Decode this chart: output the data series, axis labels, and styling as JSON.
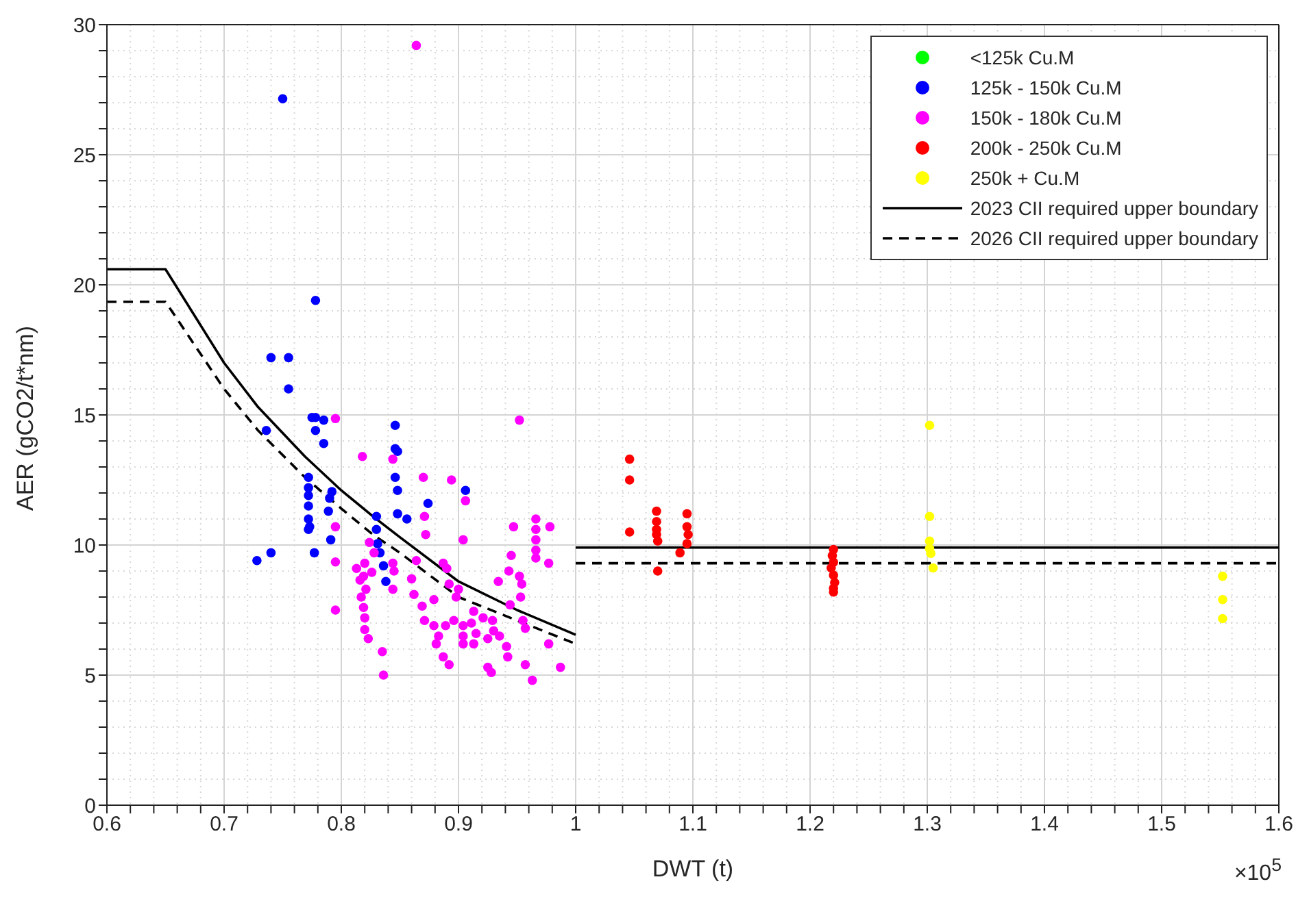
{
  "chart_data": {
    "type": "scatter",
    "xlabel": "DWT (t)",
    "ylabel": "AER (gCO2/t*nm)",
    "annotations": [
      "×10$^{5}$"
    ],
    "xlim": [
      0.6,
      1.6
    ],
    "ylim": [
      0,
      30
    ],
    "xticks": [
      0.6,
      0.7,
      0.8,
      0.9,
      1,
      1.1,
      1.2,
      1.3,
      1.4,
      1.5,
      1.6,
      {
        "value": 0.62,
        "label": null
      },
      {
        "value": 0.64,
        "label": null
      },
      {
        "value": 0.66,
        "label": null
      },
      {
        "value": 0.68,
        "label": null
      },
      {
        "value": 0.72,
        "label": null
      },
      {
        "value": 0.74,
        "label": null
      },
      {
        "value": 0.76,
        "label": null
      },
      {
        "value": 0.78,
        "label": null
      },
      {
        "value": 0.82,
        "label": null
      },
      {
        "value": 0.84,
        "label": null
      },
      {
        "value": 0.86,
        "label": null
      },
      {
        "value": 0.88,
        "label": null
      },
      {
        "value": 0.92,
        "label": null
      },
      {
        "value": 0.94,
        "label": null
      },
      {
        "value": 0.96,
        "label": null
      },
      {
        "value": 0.98,
        "label": null
      },
      {
        "value": 1.02,
        "label": null
      },
      {
        "value": 1.04,
        "label": null
      },
      {
        "value": 1.06,
        "label": null
      },
      {
        "value": 1.08,
        "label": null
      },
      {
        "value": 1.12,
        "label": null
      },
      {
        "value": 1.14,
        "label": null
      },
      {
        "value": 1.16,
        "label": null
      },
      {
        "value": 1.18,
        "label": null
      },
      {
        "value": 1.22,
        "label": null
      },
      {
        "value": 1.24,
        "label": null
      },
      {
        "value": 1.26,
        "label": null
      },
      {
        "value": 1.28,
        "label": null
      },
      {
        "value": 1.32,
        "label": null
      },
      {
        "value": 1.34,
        "label": null
      },
      {
        "value": 1.36,
        "label": null
      },
      {
        "value": 1.38,
        "label": null
      },
      {
        "value": 1.42,
        "label": null
      },
      {
        "value": 1.44,
        "label": null
      },
      {
        "value": 1.46,
        "label": null
      },
      {
        "value": 1.48,
        "label": null
      },
      {
        "value": 1.52,
        "label": null
      },
      {
        "value": 1.54,
        "label": null
      },
      {
        "value": 1.56,
        "label": null
      },
      {
        "value": 1.58,
        "label": null
      }
    ],
    "yticks": [
      0,
      5,
      10,
      15,
      20,
      25,
      30,
      {
        "value": 1,
        "label": null
      },
      {
        "value": 2,
        "label": null
      },
      {
        "value": 3,
        "label": null
      },
      {
        "value": 4,
        "label": null
      },
      {
        "value": 6,
        "label": null
      },
      {
        "value": 7,
        "label": null
      },
      {
        "value": 8,
        "label": null
      },
      {
        "value": 9,
        "label": null
      },
      {
        "value": 11,
        "label": null
      },
      {
        "value": 12,
        "label": null
      },
      {
        "value": 13,
        "label": null
      },
      {
        "value": 14,
        "label": null
      },
      {
        "value": 16,
        "label": null
      },
      {
        "value": 17,
        "label": null
      },
      {
        "value": 18,
        "label": null
      },
      {
        "value": 19,
        "label": null
      },
      {
        "value": 21,
        "label": null
      },
      {
        "value": 22,
        "label": null
      },
      {
        "value": 23,
        "label": null
      },
      {
        "value": 24,
        "label": null
      },
      {
        "value": 26,
        "label": null
      },
      {
        "value": 27,
        "label": null
      },
      {
        "value": 28,
        "label": null
      },
      {
        "value": 29,
        "label": null
      }
    ],
    "grid": true,
    "legend": "top right",
    "marker": "circle",
    "series": [
      {
        "name": "<125k Cu.M",
        "color": "#00ff00"
      },
      {
        "name": "125k - 150k Cu.M",
        "color": "#0000ff",
        "x": [
          0.75,
          0.778,
          0.74,
          0.755,
          0.755,
          0.775,
          0.778,
          0.785,
          0.846,
          0.778,
          0.736,
          0.785,
          0.846,
          0.848,
          0.846,
          0.848,
          0.906,
          0.772,
          0.772,
          0.772,
          0.772,
          0.772,
          0.772,
          0.792,
          0.79,
          0.789,
          0.773,
          0.874,
          0.848,
          0.856,
          0.83,
          0.83,
          0.831,
          0.791,
          0.728,
          0.74,
          0.777,
          0.836,
          0.838,
          0.833
        ],
        "values": [
          27.15,
          19.4,
          17.2,
          17.2,
          16,
          14.9,
          14.9,
          14.8,
          14.6,
          14.4,
          14.4,
          13.9,
          13.7,
          13.6,
          12.6,
          12.1,
          12.1,
          12.6,
          12.2,
          11.9,
          11.5,
          11,
          10.6,
          12.05,
          11.8,
          11.3,
          10.7,
          11.6,
          11.2,
          11,
          11.1,
          10.6,
          10.05,
          10.2,
          9.4,
          9.7,
          9.7,
          9.2,
          8.6,
          9.7
        ]
      },
      {
        "name": "150k - 180k Cu.M",
        "color": "#ff00ff",
        "x": [
          0.864,
          0.795,
          0.952,
          0.818,
          0.844,
          0.87,
          0.894,
          0.906,
          0.871,
          0.872,
          0.904,
          0.795,
          0.947,
          0.966,
          0.966,
          0.966,
          0.966,
          0.966,
          0.978,
          0.977,
          0.945,
          0.943,
          0.934,
          0.952,
          0.954,
          0.953,
          0.944,
          0.955,
          0.957,
          0.977,
          0.987,
          0.963,
          0.957,
          0.942,
          0.941,
          0.935,
          0.925,
          0.925,
          0.928,
          0.929,
          0.93,
          0.921,
          0.913,
          0.911,
          0.915,
          0.913,
          0.904,
          0.904,
          0.892,
          0.887,
          0.881,
          0.883,
          0.879,
          0.871,
          0.889,
          0.896,
          0.898,
          0.9,
          0.892,
          0.89,
          0.887,
          0.879,
          0.869,
          0.862,
          0.86,
          0.864,
          0.844,
          0.845,
          0.844,
          0.835,
          0.836,
          0.823,
          0.82,
          0.82,
          0.819,
          0.817,
          0.821,
          0.816,
          0.813,
          0.82,
          0.826,
          0.828,
          0.824,
          0.819,
          0.795,
          0.795,
          0.904
        ],
        "values": [
          29.2,
          14.86,
          14.8,
          13.4,
          13.3,
          12.6,
          12.5,
          11.7,
          11.1,
          10.4,
          10.2,
          10.7,
          10.7,
          11,
          10.6,
          10.2,
          9.8,
          9.5,
          10.7,
          9.3,
          9.6,
          9,
          8.6,
          8.8,
          8.5,
          8,
          7.7,
          7.1,
          6.8,
          6.2,
          5.3,
          4.8,
          5.4,
          5.7,
          6.1,
          6.5,
          6.4,
          5.3,
          5.1,
          7.1,
          6.7,
          7.2,
          7.45,
          7,
          6.6,
          6.2,
          6.9,
          6.5,
          5.4,
          5.7,
          6.2,
          6.5,
          6.9,
          7.1,
          6.9,
          7.1,
          8,
          8.3,
          8.5,
          9.1,
          9.3,
          7.9,
          7.65,
          8.1,
          8.7,
          9.4,
          9.3,
          9,
          8.3,
          5.9,
          5,
          6.4,
          6.75,
          7.2,
          7.6,
          8,
          8.3,
          8.65,
          9.1,
          9.3,
          8.95,
          9.7,
          10.1,
          8.8,
          9.35,
          7.5,
          6.2
        ]
      },
      {
        "name": "200k - 250k Cu.M",
        "color": "#ff0000",
        "x": [
          1.046,
          1.046,
          1.046,
          1.069,
          1.069,
          1.069,
          1.069,
          1.07,
          1.07,
          1.095,
          1.095,
          1.096,
          1.095,
          1.089,
          1.22,
          1.219,
          1.22,
          1.218,
          1.22,
          1.221,
          1.22,
          1.22
        ],
        "values": [
          13.3,
          12.5,
          10.5,
          11.3,
          10.9,
          10.6,
          10.4,
          10.15,
          9,
          11.2,
          10.7,
          10.4,
          10.05,
          9.7,
          9.83,
          9.59,
          9.34,
          9.12,
          8.84,
          8.56,
          8.34,
          8.19
        ]
      },
      {
        "name": "250k + Cu.M",
        "color": "#ffff00",
        "x": [
          1.302,
          1.302,
          1.302,
          1.302,
          1.303,
          1.305,
          1.552,
          1.552,
          1.552
        ],
        "values": [
          14.6,
          11.1,
          10.15,
          9.86,
          9.68,
          9.12,
          8.8,
          7.9,
          7.17
        ]
      },
      {
        "name": "2023 CII required upper boundary",
        "type": "line",
        "marker": "none",
        "color": "#000000",
        "line_style": "solid",
        "x": [
          0.6,
          0.65,
          0.7,
          0.729,
          0.769,
          0.8,
          0.827,
          0.85,
          0.9,
          0.95,
          1
        ],
        "values": [
          20.6,
          20.6,
          17,
          15.3,
          13.4,
          12.1,
          11.1,
          10.3,
          8.6,
          7.5,
          6.55
        ]
      },
      {
        "type": "line",
        "marker": "none",
        "color": "#000000",
        "line_style": "solid",
        "x": [
          1,
          1.6
        ],
        "values": [
          9.9,
          9.9
        ]
      },
      {
        "name": "2026 CII required upper boundary",
        "type": "line",
        "marker": "none",
        "color": "#000000",
        "line_style": "dashed",
        "x": [
          0.6,
          0.65,
          0.7,
          0.729,
          0.769,
          0.8,
          0.827,
          0.85,
          0.9,
          0.95,
          1
        ],
        "values": [
          19.35,
          19.35,
          16,
          14.4,
          12.6,
          11.4,
          10.4,
          9.7,
          8,
          7.1,
          6.2
        ]
      },
      {
        "type": "line",
        "marker": "none",
        "color": "#000000",
        "line_style": "dashed",
        "x": [
          1,
          1.6
        ],
        "values": [
          9.3,
          9.3
        ]
      }
    ]
  }
}
